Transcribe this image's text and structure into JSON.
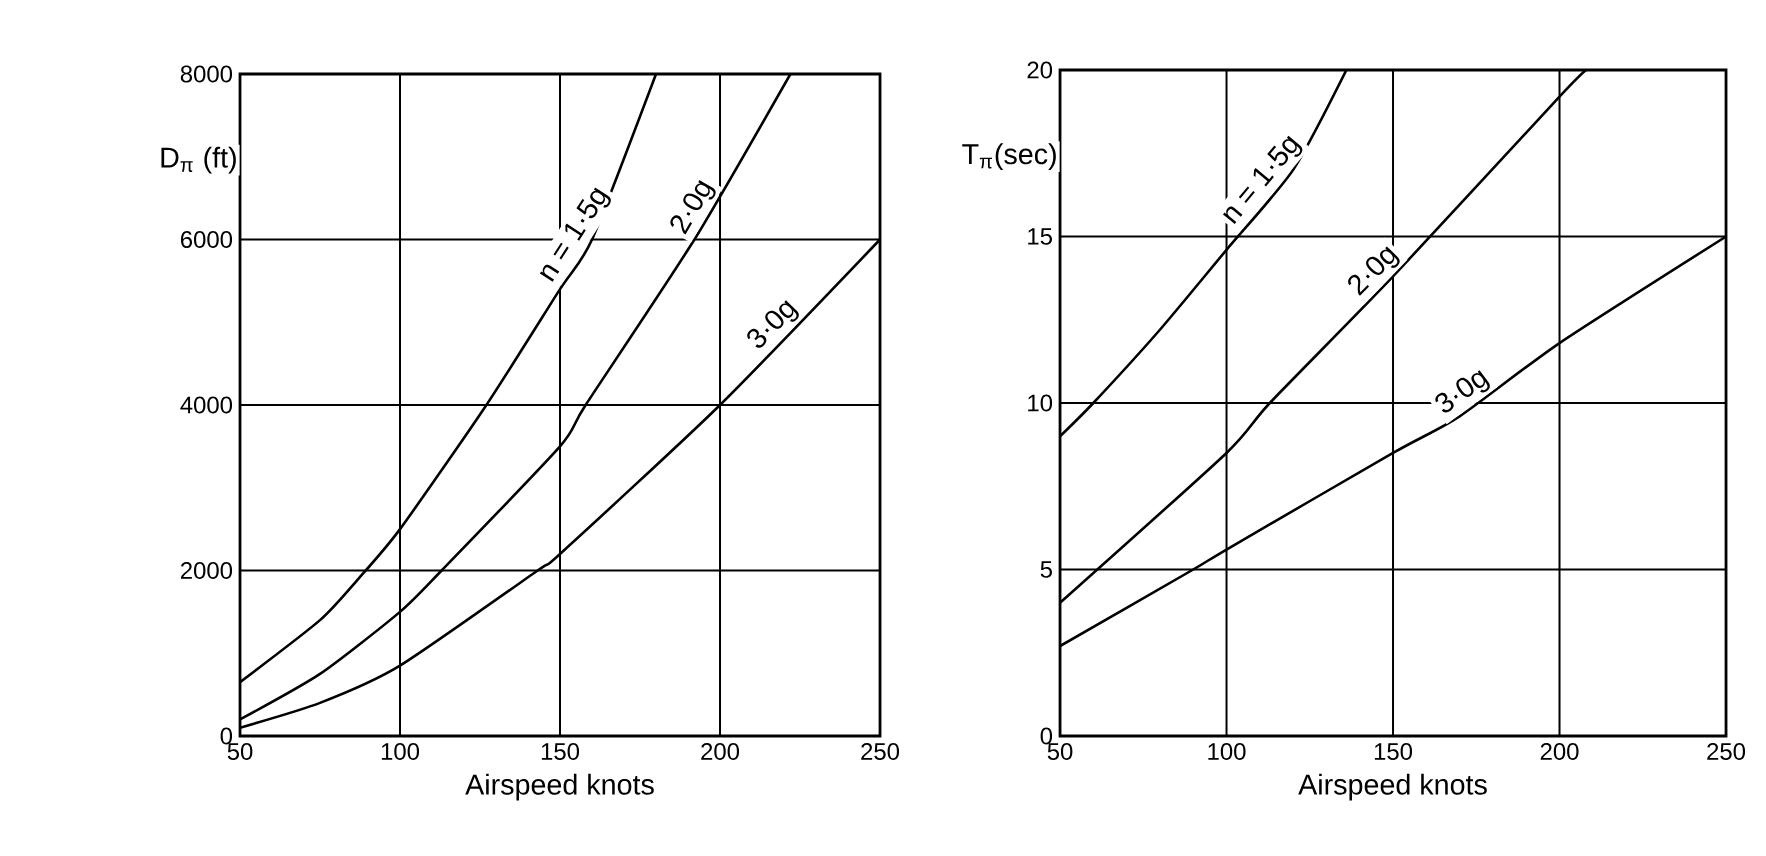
{
  "chart_data": [
    {
      "type": "line",
      "xlabel": "Airspeed knots",
      "ylabel": "D$_{π}$ (ft)",
      "xlim": [
        50,
        250
      ],
      "ylim": [
        0,
        8000
      ],
      "xticks": [
        50,
        100,
        150,
        200,
        250
      ],
      "yticks": [
        0,
        2000,
        4000,
        6000,
        8000
      ],
      "grid": true,
      "legend": false,
      "marker": "none",
      "line_style": "solid",
      "series": [
        {
          "name": "n = 1·5g",
          "color": "#000000",
          "x": [
            50,
            75,
            87,
            100,
            127,
            150,
            160,
            180
          ],
          "values": [
            650,
            1400,
            1900,
            2500,
            4000,
            5400,
            6000,
            8000
          ]
        },
        {
          "name": "2·0g",
          "color": "#000000",
          "x": [
            50,
            75,
            100,
            113,
            150,
            158,
            192,
            222
          ],
          "values": [
            200,
            750,
            1500,
            2000,
            3500,
            4000,
            6000,
            8000
          ]
        },
        {
          "name": "3·0g",
          "color": "#000000",
          "x": [
            50,
            75,
            100,
            143,
            150,
            200,
            250
          ],
          "values": [
            100,
            400,
            850,
            2000,
            2200,
            4000,
            6000
          ]
        }
      ]
    },
    {
      "type": "line",
      "xlabel": "Airspeed knots",
      "ylabel": "T$_{π}$(sec)",
      "xlim": [
        50,
        250
      ],
      "ylim": [
        0,
        20
      ],
      "xticks": [
        50,
        100,
        150,
        200,
        250
      ],
      "yticks": [
        0,
        5,
        10,
        15,
        20
      ],
      "grid": true,
      "legend": false,
      "marker": "none",
      "line_style": "solid",
      "series": [
        {
          "name": "n = 1·5g",
          "color": "#000000",
          "x": [
            50,
            60,
            80,
            100,
            120,
            136
          ],
          "values": [
            9,
            10,
            12.2,
            14.6,
            17,
            20
          ]
        },
        {
          "name": "2·0g",
          "color": "#000000",
          "x": [
            50,
            100,
            113,
            150,
            200,
            208
          ],
          "values": [
            4,
            8.5,
            10,
            13.8,
            19.2,
            20
          ]
        },
        {
          "name": "3·0g",
          "color": "#000000",
          "x": [
            50,
            90,
            100,
            150,
            170,
            200,
            250
          ],
          "values": [
            2.7,
            5,
            5.6,
            8.5,
            9.6,
            11.8,
            15
          ]
        }
      ]
    }
  ]
}
